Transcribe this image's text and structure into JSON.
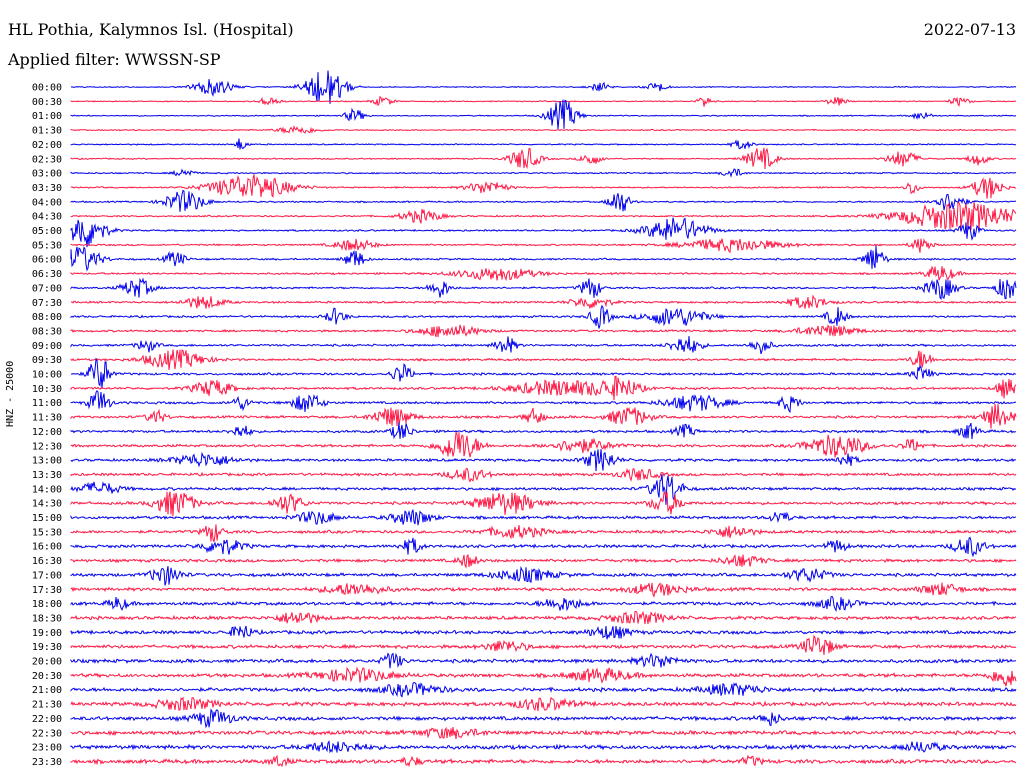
{
  "header": {
    "station": "HL Pothia, Kalymnos Isl. (Hospital)",
    "date": "2022-07-13",
    "filter": "Applied filter: WWSSN-SP"
  },
  "channel_label": "HNZ - 25000",
  "colors": {
    "trace_even": "#0000ee",
    "trace_odd": "#ff1744",
    "text": "#000000",
    "background": "#ffffff"
  },
  "chart_data": {
    "type": "line",
    "title": "HL Pothia, Kalymnos Isl. (Hospital)",
    "subtitle": "Applied filter: WWSSN-SP",
    "date": "2022-07-13",
    "ylabel": "HNZ - 25000",
    "xlabel": "",
    "trace_colors": [
      "blue",
      "red"
    ],
    "rows": [
      {
        "label": "00:00",
        "events": [
          [
            0.15,
            2.5,
            0.02
          ],
          [
            0.27,
            6,
            0.02
          ],
          [
            0.56,
            1.5,
            0.01
          ],
          [
            0.62,
            1.5,
            0.01
          ]
        ]
      },
      {
        "label": "00:30",
        "events": [
          [
            0.21,
            1.5,
            0.01
          ],
          [
            0.33,
            1.5,
            0.01
          ],
          [
            0.67,
            2,
            0.006
          ],
          [
            0.81,
            1.3,
            0.01
          ],
          [
            0.94,
            1.3,
            0.01
          ]
        ]
      },
      {
        "label": "01:00",
        "events": [
          [
            0.3,
            2,
            0.01
          ],
          [
            0.52,
            5,
            0.015
          ],
          [
            0.9,
            1.2,
            0.01
          ]
        ]
      },
      {
        "label": "01:30",
        "events": [
          [
            0.24,
            1.2,
            0.02
          ]
        ]
      },
      {
        "label": "02:00",
        "events": [
          [
            0.18,
            2,
            0.006
          ],
          [
            0.71,
            1.5,
            0.01
          ]
        ]
      },
      {
        "label": "02:30",
        "events": [
          [
            0.48,
            3.5,
            0.015
          ],
          [
            0.55,
            2,
            0.01
          ],
          [
            0.73,
            3.5,
            0.015
          ],
          [
            0.88,
            2.5,
            0.015
          ],
          [
            0.96,
            2,
            0.01
          ]
        ]
      },
      {
        "label": "03:00",
        "events": [
          [
            0.12,
            1.3,
            0.01
          ],
          [
            0.7,
            1.5,
            0.01
          ]
        ]
      },
      {
        "label": "03:30",
        "events": [
          [
            0.19,
            4,
            0.04
          ],
          [
            0.44,
            2,
            0.02
          ],
          [
            0.89,
            2.5,
            0.006
          ],
          [
            0.97,
            3.5,
            0.015
          ]
        ]
      },
      {
        "label": "04:00",
        "events": [
          [
            0.12,
            3.5,
            0.02
          ],
          [
            0.58,
            4,
            0.01
          ],
          [
            0.93,
            3,
            0.015
          ]
        ]
      },
      {
        "label": "04:30",
        "events": [
          [
            0.37,
            2,
            0.02
          ],
          [
            0.94,
            4.5,
            0.06
          ]
        ]
      },
      {
        "label": "05:00",
        "events": [
          [
            0.015,
            5.5,
            0.02
          ],
          [
            0.64,
            4,
            0.03
          ],
          [
            0.95,
            3,
            0.01
          ]
        ]
      },
      {
        "label": "05:30",
        "events": [
          [
            0.3,
            1.8,
            0.02
          ],
          [
            0.7,
            2,
            0.05
          ],
          [
            0.9,
            2.5,
            0.01
          ]
        ]
      },
      {
        "label": "06:00",
        "events": [
          [
            0.01,
            4,
            0.02
          ],
          [
            0.11,
            2.5,
            0.01
          ],
          [
            0.3,
            3,
            0.01
          ],
          [
            0.85,
            4.5,
            0.01
          ]
        ]
      },
      {
        "label": "06:30",
        "events": [
          [
            0.45,
            2,
            0.04
          ],
          [
            0.92,
            2.5,
            0.015
          ]
        ]
      },
      {
        "label": "07:00",
        "events": [
          [
            0.07,
            3,
            0.015
          ],
          [
            0.39,
            3,
            0.01
          ],
          [
            0.55,
            3.5,
            0.01
          ],
          [
            0.92,
            3.5,
            0.015
          ],
          [
            0.99,
            4,
            0.01
          ]
        ]
      },
      {
        "label": "07:30",
        "events": [
          [
            0.14,
            2,
            0.02
          ],
          [
            0.55,
            1.8,
            0.02
          ],
          [
            0.78,
            2,
            0.02
          ]
        ]
      },
      {
        "label": "08:00",
        "events": [
          [
            0.28,
            2.5,
            0.01
          ],
          [
            0.56,
            3.5,
            0.01
          ],
          [
            0.64,
            3,
            0.03
          ],
          [
            0.81,
            3,
            0.01
          ]
        ]
      },
      {
        "label": "08:30",
        "events": [
          [
            0.4,
            2,
            0.03
          ],
          [
            0.8,
            1.8,
            0.03
          ]
        ]
      },
      {
        "label": "09:00",
        "events": [
          [
            0.08,
            2,
            0.01
          ],
          [
            0.46,
            3,
            0.01
          ],
          [
            0.65,
            3,
            0.015
          ],
          [
            0.73,
            2.5,
            0.01
          ]
        ]
      },
      {
        "label": "09:30",
        "events": [
          [
            0.11,
            3,
            0.03
          ],
          [
            0.9,
            3,
            0.01
          ]
        ]
      },
      {
        "label": "10:00",
        "events": [
          [
            0.03,
            6,
            0.01
          ],
          [
            0.35,
            3,
            0.01
          ],
          [
            0.9,
            2.5,
            0.01
          ]
        ]
      },
      {
        "label": "10:30",
        "events": [
          [
            0.15,
            2.5,
            0.02
          ],
          [
            0.52,
            2.5,
            0.05
          ],
          [
            0.58,
            3,
            0.02
          ],
          [
            0.99,
            3,
            0.01
          ]
        ]
      },
      {
        "label": "11:00",
        "events": [
          [
            0.03,
            4,
            0.01
          ],
          [
            0.18,
            2,
            0.01
          ],
          [
            0.25,
            3,
            0.015
          ],
          [
            0.66,
            2.5,
            0.03
          ],
          [
            0.76,
            2.5,
            0.01
          ]
        ]
      },
      {
        "label": "11:30",
        "events": [
          [
            0.09,
            2,
            0.01
          ],
          [
            0.34,
            3,
            0.02
          ],
          [
            0.49,
            2.5,
            0.01
          ],
          [
            0.59,
            3,
            0.02
          ],
          [
            0.98,
            4,
            0.015
          ]
        ]
      },
      {
        "label": "12:00",
        "events": [
          [
            0.18,
            2,
            0.01
          ],
          [
            0.35,
            3,
            0.01
          ],
          [
            0.65,
            2,
            0.01
          ],
          [
            0.95,
            2.5,
            0.01
          ]
        ]
      },
      {
        "label": "12:30",
        "events": [
          [
            0.41,
            5,
            0.02
          ],
          [
            0.54,
            2,
            0.03
          ],
          [
            0.81,
            3.5,
            0.03
          ],
          [
            0.89,
            2,
            0.01
          ]
        ]
      },
      {
        "label": "13:00",
        "events": [
          [
            0.14,
            2,
            0.03
          ],
          [
            0.56,
            3.5,
            0.015
          ],
          [
            0.82,
            2,
            0.01
          ]
        ]
      },
      {
        "label": "13:30",
        "events": [
          [
            0.42,
            2,
            0.02
          ],
          [
            0.6,
            1.8,
            0.02
          ]
        ]
      },
      {
        "label": "14:00",
        "events": [
          [
            0.03,
            2,
            0.02
          ],
          [
            0.63,
            5,
            0.015
          ]
        ]
      },
      {
        "label": "14:30",
        "events": [
          [
            0.11,
            4,
            0.02
          ],
          [
            0.23,
            3,
            0.015
          ],
          [
            0.46,
            3.5,
            0.03
          ],
          [
            0.63,
            3.5,
            0.015
          ]
        ]
      },
      {
        "label": "15:00",
        "events": [
          [
            0.26,
            2,
            0.02
          ],
          [
            0.36,
            2.5,
            0.02
          ],
          [
            0.75,
            2,
            0.01
          ]
        ]
      },
      {
        "label": "15:30",
        "events": [
          [
            0.15,
            3,
            0.01
          ],
          [
            0.47,
            1.8,
            0.03
          ],
          [
            0.7,
            1.8,
            0.02
          ]
        ]
      },
      {
        "label": "16:00",
        "events": [
          [
            0.16,
            2.5,
            0.02
          ],
          [
            0.36,
            2.5,
            0.01
          ],
          [
            0.81,
            2,
            0.01
          ],
          [
            0.95,
            3,
            0.015
          ]
        ]
      },
      {
        "label": "16:30",
        "events": [
          [
            0.42,
            2,
            0.01
          ],
          [
            0.71,
            1.8,
            0.02
          ]
        ]
      },
      {
        "label": "17:00",
        "events": [
          [
            0.1,
            3,
            0.015
          ],
          [
            0.48,
            2,
            0.03
          ],
          [
            0.78,
            2,
            0.02
          ]
        ]
      },
      {
        "label": "17:30",
        "events": [
          [
            0.3,
            1.8,
            0.03
          ],
          [
            0.62,
            1.8,
            0.03
          ],
          [
            0.92,
            1.8,
            0.02
          ]
        ]
      },
      {
        "label": "18:00",
        "events": [
          [
            0.05,
            2,
            0.01
          ],
          [
            0.52,
            2,
            0.02
          ],
          [
            0.81,
            1.8,
            0.02
          ]
        ]
      },
      {
        "label": "18:30",
        "events": [
          [
            0.24,
            2,
            0.02
          ],
          [
            0.6,
            1.8,
            0.03
          ]
        ]
      },
      {
        "label": "19:00",
        "events": [
          [
            0.18,
            2.5,
            0.01
          ],
          [
            0.57,
            2,
            0.02
          ]
        ]
      },
      {
        "label": "19:30",
        "events": [
          [
            0.46,
            1.8,
            0.02
          ],
          [
            0.79,
            3.5,
            0.015
          ]
        ]
      },
      {
        "label": "20:00",
        "events": [
          [
            0.34,
            2.5,
            0.01
          ],
          [
            0.62,
            2,
            0.02
          ]
        ]
      },
      {
        "label": "20:30",
        "events": [
          [
            0.3,
            2,
            0.04
          ],
          [
            0.56,
            2,
            0.03
          ],
          [
            0.99,
            3.5,
            0.015
          ]
        ]
      },
      {
        "label": "21:00",
        "events": [
          [
            0.36,
            1.8,
            0.03
          ],
          [
            0.7,
            1.8,
            0.03
          ]
        ]
      },
      {
        "label": "21:30",
        "events": [
          [
            0.12,
            1.8,
            0.03
          ],
          [
            0.5,
            1.8,
            0.03
          ]
        ]
      },
      {
        "label": "22:00",
        "events": [
          [
            0.15,
            2.5,
            0.02
          ],
          [
            0.74,
            2,
            0.01
          ]
        ]
      },
      {
        "label": "22:30",
        "events": [
          [
            0.4,
            1.5,
            0.03
          ]
        ]
      },
      {
        "label": "23:00",
        "events": [
          [
            0.28,
            1.5,
            0.03
          ],
          [
            0.9,
            1.5,
            0.02
          ]
        ]
      },
      {
        "label": "23:30",
        "events": [
          [
            0.22,
            1.5,
            0.01
          ],
          [
            0.36,
            1.3,
            0.01
          ],
          [
            0.72,
            1.3,
            0.01
          ]
        ]
      }
    ]
  }
}
